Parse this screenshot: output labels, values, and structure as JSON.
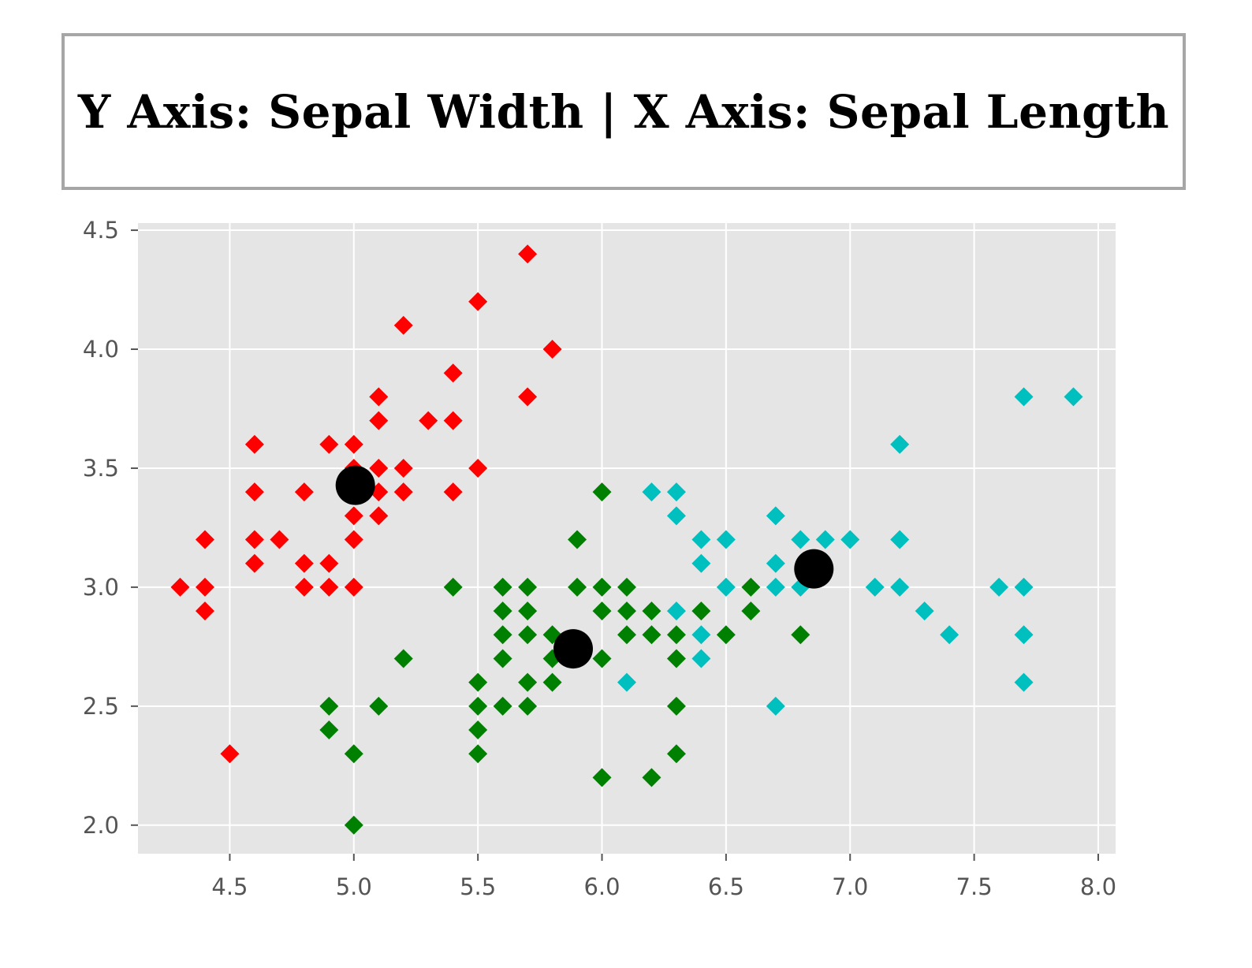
{
  "title": "Y Axis: Sepal Width | X Axis: Sepal Length",
  "chart_data": {
    "type": "scatter",
    "title": "Y Axis: Sepal Width | X Axis: Sepal Length",
    "xlabel": "",
    "ylabel": "",
    "xlim": [
      4.13,
      8.07
    ],
    "ylim": [
      1.88,
      4.53
    ],
    "xticks": [
      4.5,
      5.0,
      5.5,
      6.0,
      6.5,
      7.0,
      7.5,
      8.0
    ],
    "yticks": [
      2.0,
      2.5,
      3.0,
      3.5,
      4.0,
      4.5
    ],
    "xtick_labels": [
      "4.5",
      "5.0",
      "5.5",
      "6.0",
      "6.5",
      "7.0",
      "7.5",
      "8.0"
    ],
    "ytick_labels": [
      "2.0",
      "2.5",
      "3.0",
      "3.5",
      "4.0",
      "4.5"
    ],
    "grid": true,
    "legend": "none",
    "background": "#e5e5e5",
    "series": [
      {
        "color": "#ff0000",
        "marker": "diamond",
        "points": [
          [
            5.7,
            4.4
          ],
          [
            5.5,
            4.2
          ],
          [
            5.2,
            4.1
          ],
          [
            5.8,
            4.0
          ],
          [
            5.4,
            3.9
          ],
          [
            5.1,
            3.8
          ],
          [
            5.7,
            3.8
          ],
          [
            5.1,
            3.7
          ],
          [
            5.3,
            3.7
          ],
          [
            5.4,
            3.7
          ],
          [
            4.6,
            3.6
          ],
          [
            4.9,
            3.6
          ],
          [
            5.0,
            3.6
          ],
          [
            5.0,
            3.5
          ],
          [
            5.1,
            3.5
          ],
          [
            5.2,
            3.5
          ],
          [
            5.5,
            3.5
          ],
          [
            4.6,
            3.4
          ],
          [
            4.8,
            3.4
          ],
          [
            5.0,
            3.4
          ],
          [
            5.1,
            3.4
          ],
          [
            5.2,
            3.4
          ],
          [
            5.4,
            3.4
          ],
          [
            5.0,
            3.3
          ],
          [
            5.1,
            3.3
          ],
          [
            4.4,
            3.2
          ],
          [
            4.6,
            3.2
          ],
          [
            4.7,
            3.2
          ],
          [
            5.0,
            3.2
          ],
          [
            4.6,
            3.1
          ],
          [
            4.8,
            3.1
          ],
          [
            4.9,
            3.1
          ],
          [
            4.3,
            3.0
          ],
          [
            4.4,
            3.0
          ],
          [
            4.8,
            3.0
          ],
          [
            4.9,
            3.0
          ],
          [
            5.0,
            3.0
          ],
          [
            4.4,
            2.9
          ],
          [
            4.5,
            2.3
          ]
        ]
      },
      {
        "color": "#008000",
        "marker": "diamond",
        "points": [
          [
            6.0,
            3.4
          ],
          [
            5.9,
            3.2
          ],
          [
            5.4,
            3.0
          ],
          [
            5.6,
            3.0
          ],
          [
            5.7,
            3.0
          ],
          [
            5.9,
            3.0
          ],
          [
            6.0,
            3.0
          ],
          [
            6.1,
            3.0
          ],
          [
            6.6,
            3.0
          ],
          [
            5.6,
            2.9
          ],
          [
            5.7,
            2.9
          ],
          [
            6.0,
            2.9
          ],
          [
            6.1,
            2.9
          ],
          [
            6.2,
            2.9
          ],
          [
            6.4,
            2.9
          ],
          [
            6.6,
            2.9
          ],
          [
            5.6,
            2.8
          ],
          [
            5.7,
            2.8
          ],
          [
            5.8,
            2.8
          ],
          [
            6.1,
            2.8
          ],
          [
            6.2,
            2.8
          ],
          [
            6.3,
            2.8
          ],
          [
            6.5,
            2.8
          ],
          [
            6.8,
            2.8
          ],
          [
            5.2,
            2.7
          ],
          [
            5.6,
            2.7
          ],
          [
            5.8,
            2.7
          ],
          [
            6.0,
            2.7
          ],
          [
            6.3,
            2.7
          ],
          [
            5.5,
            2.6
          ],
          [
            5.7,
            2.6
          ],
          [
            5.8,
            2.6
          ],
          [
            4.9,
            2.5
          ],
          [
            5.1,
            2.5
          ],
          [
            5.5,
            2.5
          ],
          [
            5.6,
            2.5
          ],
          [
            5.7,
            2.5
          ],
          [
            6.3,
            2.5
          ],
          [
            4.9,
            2.4
          ],
          [
            5.5,
            2.4
          ],
          [
            5.0,
            2.3
          ],
          [
            5.5,
            2.3
          ],
          [
            6.3,
            2.3
          ],
          [
            6.0,
            2.2
          ],
          [
            6.2,
            2.2
          ],
          [
            5.0,
            2.0
          ]
        ]
      },
      {
        "color": "#00bfbf",
        "marker": "diamond",
        "points": [
          [
            7.7,
            3.8
          ],
          [
            7.9,
            3.8
          ],
          [
            7.2,
            3.6
          ],
          [
            6.2,
            3.4
          ],
          [
            6.3,
            3.4
          ],
          [
            6.3,
            3.3
          ],
          [
            6.7,
            3.3
          ],
          [
            6.4,
            3.2
          ],
          [
            6.5,
            3.2
          ],
          [
            6.8,
            3.2
          ],
          [
            6.9,
            3.2
          ],
          [
            7.0,
            3.2
          ],
          [
            7.2,
            3.2
          ],
          [
            6.4,
            3.1
          ],
          [
            6.7,
            3.1
          ],
          [
            6.5,
            3.0
          ],
          [
            6.7,
            3.0
          ],
          [
            6.8,
            3.0
          ],
          [
            7.1,
            3.0
          ],
          [
            7.2,
            3.0
          ],
          [
            7.6,
            3.0
          ],
          [
            7.7,
            3.0
          ],
          [
            6.3,
            2.9
          ],
          [
            7.3,
            2.9
          ],
          [
            6.4,
            2.8
          ],
          [
            7.4,
            2.8
          ],
          [
            7.7,
            2.8
          ],
          [
            6.4,
            2.7
          ],
          [
            6.1,
            2.6
          ],
          [
            7.7,
            2.6
          ],
          [
            6.7,
            2.5
          ]
        ]
      },
      {
        "color": "#000000",
        "marker": "circle",
        "points": [
          [
            5.006,
            3.428
          ],
          [
            5.884,
            2.741
          ],
          [
            6.854,
            3.077
          ]
        ]
      }
    ]
  }
}
